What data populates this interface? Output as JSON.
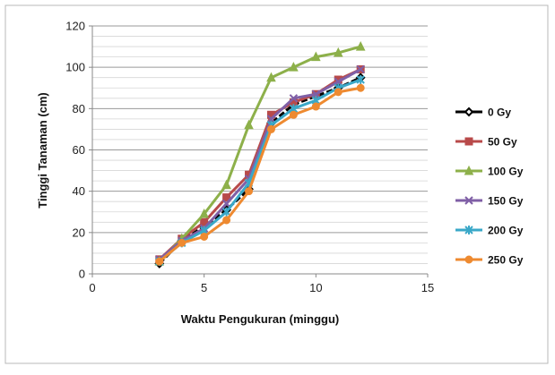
{
  "chart_data": {
    "type": "line",
    "xlabel": "Waktu Pengukuran (minggu)",
    "ylabel": "Tinggi Tanaman (cm)",
    "xlim": [
      0,
      15
    ],
    "ylim": [
      0,
      120
    ],
    "xticks": [
      0,
      5,
      10,
      15
    ],
    "yticks": [
      0,
      20,
      40,
      60,
      80,
      100,
      120
    ],
    "grid": "horizontal",
    "legend": "right",
    "series": [
      {
        "name": "0 Gy",
        "color": "#000000",
        "marker": "diamond",
        "x": [
          3,
          4,
          5,
          6,
          7,
          8,
          9,
          10,
          11,
          12
        ],
        "y": [
          5,
          16,
          23,
          31,
          41,
          73,
          82,
          86,
          90,
          95
        ]
      },
      {
        "name": "50 Gy",
        "color": "#b84a4a",
        "marker": "square",
        "x": [
          3,
          4,
          5,
          6,
          7,
          8,
          9,
          10,
          11,
          12
        ],
        "y": [
          7,
          17,
          25,
          37,
          48,
          77,
          83,
          87,
          94,
          99
        ]
      },
      {
        "name": "100 Gy",
        "color": "#8db04a",
        "marker": "triangle",
        "x": [
          3,
          4,
          5,
          6,
          7,
          8,
          9,
          10,
          11,
          12
        ],
        "y": [
          6,
          17,
          29,
          43,
          72,
          95,
          100,
          105,
          107,
          110
        ]
      },
      {
        "name": "150 Gy",
        "color": "#7f5fa6",
        "marker": "x",
        "x": [
          3,
          4,
          5,
          6,
          7,
          8,
          9,
          10,
          11,
          12
        ],
        "y": [
          7,
          16,
          22,
          34,
          46,
          75,
          85,
          87,
          93,
          99
        ]
      },
      {
        "name": "200 Gy",
        "color": "#3aa8c8",
        "marker": "star",
        "x": [
          3,
          4,
          5,
          6,
          7,
          8,
          9,
          10,
          11,
          12
        ],
        "y": [
          6,
          15,
          21,
          30,
          44,
          72,
          80,
          84,
          90,
          94
        ]
      },
      {
        "name": "250 Gy",
        "color": "#ee8a30",
        "marker": "circle",
        "x": [
          3,
          4,
          5,
          6,
          7,
          8,
          9,
          10,
          11,
          12
        ],
        "y": [
          6,
          15,
          18,
          26,
          40,
          70,
          77,
          81,
          88,
          90
        ]
      }
    ]
  }
}
